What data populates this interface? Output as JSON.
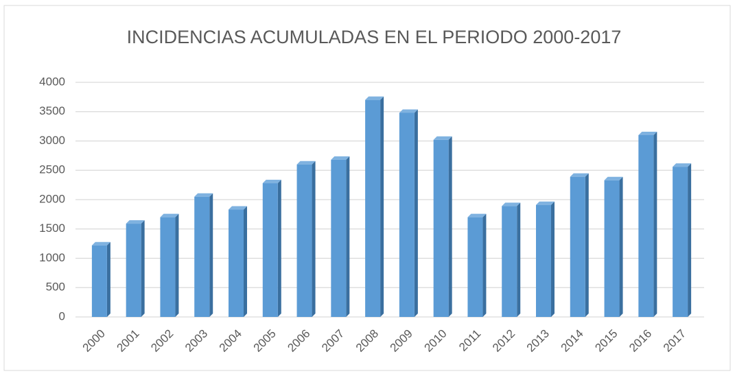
{
  "chart_data": {
    "type": "bar",
    "title": "INCIDENCIAS ACUMULADAS EN EL PERIODO 2000-2017",
    "categories": [
      "2000",
      "2001",
      "2002",
      "2003",
      "2004",
      "2005",
      "2006",
      "2007",
      "2008",
      "2009",
      "2010",
      "2011",
      "2012",
      "2013",
      "2014",
      "2015",
      "2016",
      "2017"
    ],
    "values": [
      1220,
      1590,
      1700,
      2050,
      1830,
      2280,
      2600,
      2680,
      3700,
      3480,
      3020,
      1700,
      1890,
      1910,
      2390,
      2330,
      3100,
      2560
    ],
    "color": "#5b9bd5",
    "ylim": [
      0,
      4000
    ],
    "yticks": [
      0,
      500,
      1000,
      1500,
      2000,
      2500,
      3000,
      3500,
      4000
    ],
    "grid": true
  }
}
